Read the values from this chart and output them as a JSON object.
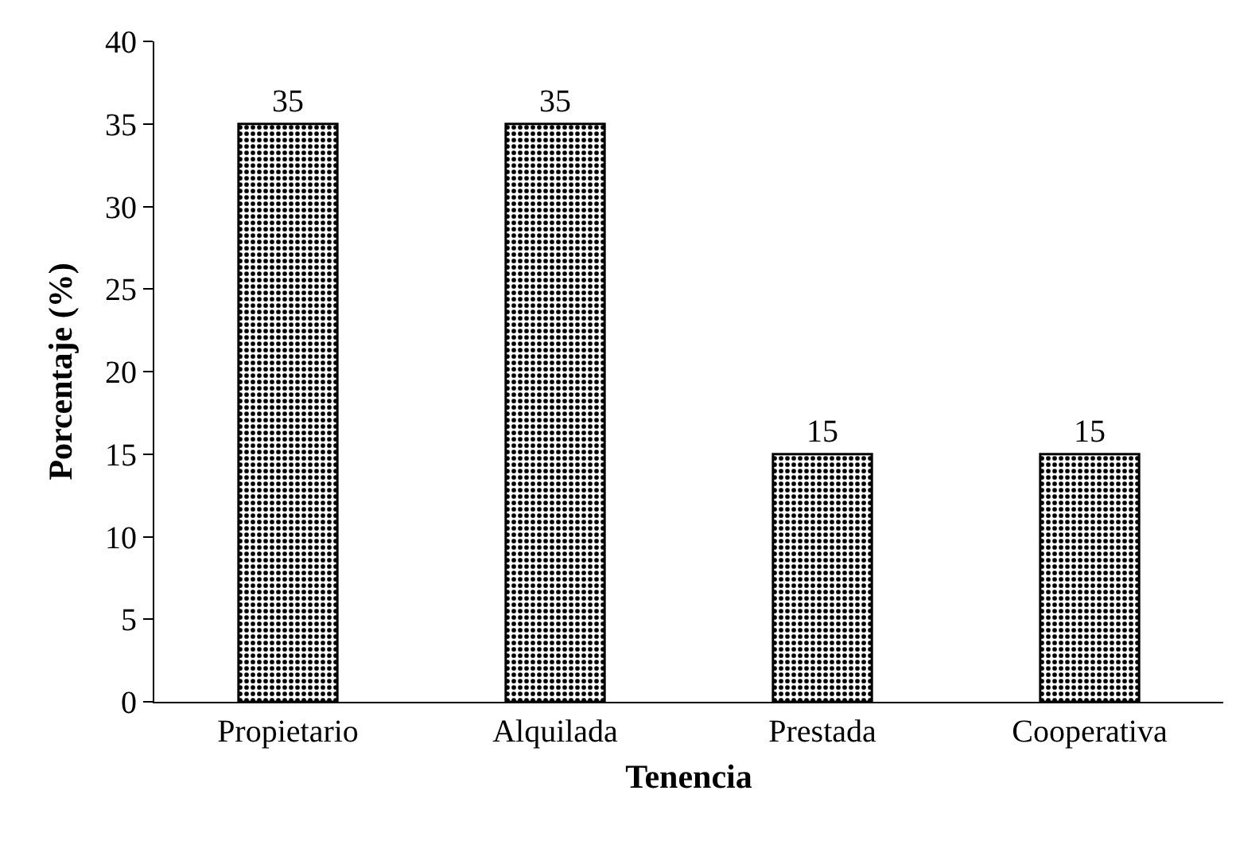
{
  "chart_data": {
    "type": "bar",
    "xlabel": "Tenencia",
    "ylabel": "Porcentaje (%)",
    "categories": [
      "Propietario",
      "Alquilada",
      "Prestada",
      "Cooperativa"
    ],
    "values": [
      35,
      35,
      15,
      15
    ],
    "color": "#000000",
    "ylim": [
      0,
      40
    ],
    "yticks": [
      0,
      5,
      10,
      15,
      20,
      25,
      30,
      35,
      40
    ],
    "grid": false,
    "data_labels": true
  }
}
